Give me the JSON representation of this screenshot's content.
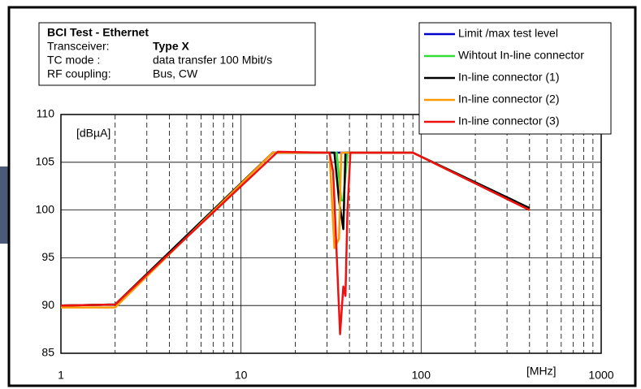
{
  "chart_data": {
    "type": "line",
    "info": {
      "title": "BCI Test - Ethernet",
      "rows": [
        [
          "Transceiver:",
          "Type X"
        ],
        [
          "TC mode :",
          "data transfer 100 Mbit/s"
        ],
        [
          "RF coupling:",
          "Bus, CW"
        ]
      ]
    },
    "ylabel": "[dBµA]",
    "xlabel": "[MHz]",
    "xlog": true,
    "xlim": [
      1,
      1000
    ],
    "xticks": [
      1,
      10,
      100,
      1000
    ],
    "xminor_ticks": [
      2,
      3,
      4,
      5,
      6,
      7,
      8,
      9,
      20,
      30,
      40,
      50,
      60,
      70,
      80,
      90,
      200,
      300,
      400,
      500,
      600,
      700,
      800,
      900
    ],
    "ylim": [
      85,
      110
    ],
    "yticks": [
      85,
      90,
      95,
      100,
      105,
      110
    ],
    "grid": true,
    "legend": "upper right",
    "series": [
      {
        "name": "Limit /max test level",
        "color": "#0000cc",
        "x": [
          1,
          2,
          15,
          90,
          400
        ],
        "values": [
          90,
          90.1,
          106,
          106,
          100
        ]
      },
      {
        "name": "Wihtout In-line connector",
        "color": "#33dd33",
        "x": [
          1,
          2,
          15,
          34,
          36,
          37,
          39,
          90,
          400
        ],
        "values": [
          90,
          90.1,
          106,
          106,
          101,
          101,
          106,
          106,
          100.2
        ]
      },
      {
        "name": "In-line connector (1)",
        "color": "#000000",
        "x": [
          1,
          2,
          15,
          33,
          35,
          37,
          38,
          90,
          400
        ],
        "values": [
          90,
          90.1,
          106,
          106,
          101,
          98,
          106,
          106,
          100.2
        ]
      },
      {
        "name": "In-line connector (2)",
        "color": "#ff9900",
        "x": [
          1,
          2,
          15,
          31,
          33,
          35,
          36,
          90,
          400
        ],
        "values": [
          89.8,
          89.8,
          106,
          106,
          96,
          97,
          106,
          106,
          100
        ]
      },
      {
        "name": "In-line connector (3)",
        "color": "#ee1111",
        "x": [
          1,
          2,
          16,
          31,
          32.5,
          35.5,
          37,
          38,
          39,
          40.5,
          90,
          400
        ],
        "values": [
          90,
          90.1,
          106.1,
          106,
          104,
          87,
          92,
          91,
          100,
          106,
          106,
          100
        ]
      }
    ]
  }
}
